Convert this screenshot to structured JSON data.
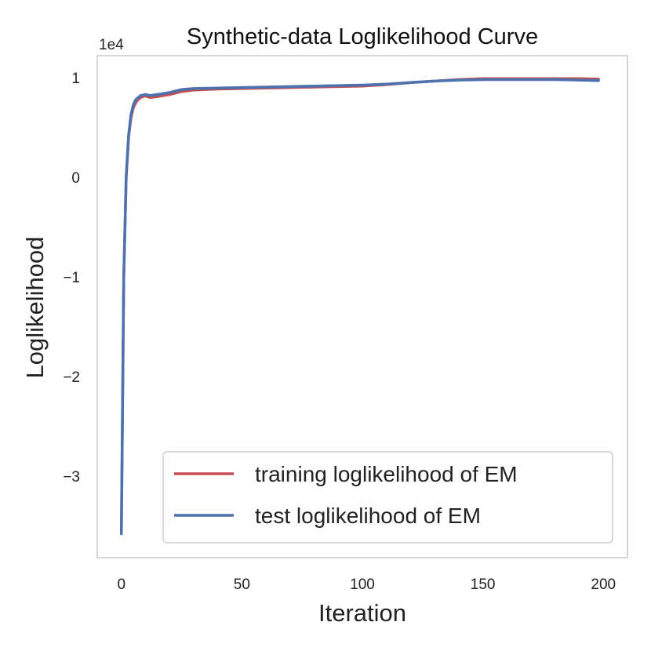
{
  "chart_data": {
    "type": "line",
    "title": "Synthetic-data Loglikelihood Curve",
    "xlabel": "Iteration",
    "ylabel": "Loglikelihood",
    "offset_text": "1e4",
    "xlim": [
      -10,
      210
    ],
    "ylim": [
      -3.82,
      1.22
    ],
    "xticks": [
      0,
      50,
      100,
      150,
      200
    ],
    "xtick_labels": [
      "0",
      "50",
      "100",
      "150",
      "200"
    ],
    "yticks": [
      -3,
      -2,
      -1,
      0,
      1
    ],
    "ytick_labels": [
      "−3",
      "−2",
      "−1",
      "0",
      "1"
    ],
    "grid": false,
    "legend_position": "lower-right",
    "series": [
      {
        "name": "training loglikelihood of EM",
        "color": "#c44e52",
        "x": [
          0,
          1,
          2,
          3,
          4,
          5,
          6,
          7,
          8,
          9,
          10,
          12,
          15,
          20,
          25,
          30,
          40,
          50,
          60,
          70,
          80,
          90,
          100,
          110,
          120,
          130,
          140,
          150,
          160,
          170,
          180,
          190,
          198
        ],
        "y": [
          -3.58,
          -1.0,
          0.0,
          0.4,
          0.6,
          0.7,
          0.75,
          0.78,
          0.8,
          0.81,
          0.815,
          0.8,
          0.81,
          0.83,
          0.86,
          0.875,
          0.885,
          0.89,
          0.895,
          0.9,
          0.905,
          0.91,
          0.915,
          0.93,
          0.95,
          0.965,
          0.98,
          0.99,
          0.99,
          0.99,
          0.99,
          0.99,
          0.985
        ]
      },
      {
        "name": "test loglikelihood of EM",
        "color": "#4c72b0",
        "x": [
          0,
          1,
          2,
          3,
          4,
          5,
          6,
          7,
          8,
          9,
          10,
          12,
          15,
          20,
          25,
          30,
          40,
          50,
          60,
          70,
          80,
          90,
          100,
          110,
          120,
          130,
          140,
          150,
          160,
          170,
          180,
          190,
          198
        ],
        "y": [
          -3.58,
          -1.0,
          0.0,
          0.42,
          0.63,
          0.73,
          0.78,
          0.8,
          0.82,
          0.825,
          0.83,
          0.82,
          0.83,
          0.85,
          0.88,
          0.89,
          0.895,
          0.9,
          0.905,
          0.91,
          0.915,
          0.92,
          0.925,
          0.935,
          0.95,
          0.965,
          0.975,
          0.98,
          0.98,
          0.98,
          0.98,
          0.975,
          0.97
        ]
      }
    ]
  }
}
